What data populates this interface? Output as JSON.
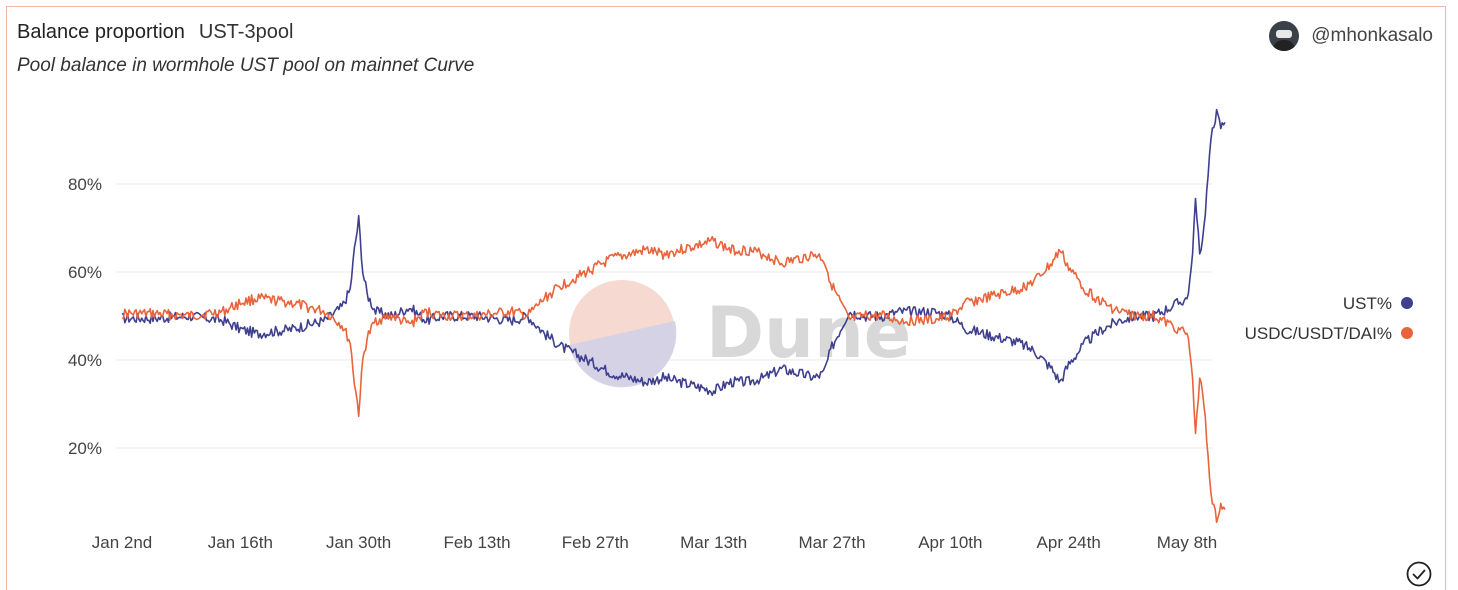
{
  "header": {
    "title": "Balance proportion",
    "query": "UST-3pool",
    "subtitle": "Pool balance in wormhole UST pool on mainnet Curve",
    "author": "@mhonkasalo"
  },
  "watermark": "Dune",
  "colors": {
    "ust": "#3f3f8f",
    "usdc": "#e8643a",
    "grid": "#e8e8e8"
  },
  "chart_data": {
    "type": "line",
    "title": "Balance proportion",
    "ylim": [
      0,
      100
    ],
    "yticks": [
      {
        "value": 20,
        "label": "20%"
      },
      {
        "value": 40,
        "label": "40%"
      },
      {
        "value": 60,
        "label": "60%"
      },
      {
        "value": 80,
        "label": "80%"
      }
    ],
    "xlim": [
      0,
      131
    ],
    "xticks": [
      {
        "value": 0,
        "label": "Jan 2nd"
      },
      {
        "value": 14,
        "label": "Jan 16th"
      },
      {
        "value": 28,
        "label": "Jan 30th"
      },
      {
        "value": 42,
        "label": "Feb 13th"
      },
      {
        "value": 56,
        "label": "Feb 27th"
      },
      {
        "value": 70,
        "label": "Mar 13th"
      },
      {
        "value": 84,
        "label": "Mar 27th"
      },
      {
        "value": 98,
        "label": "Apr 10th"
      },
      {
        "value": 112,
        "label": "Apr 24th"
      },
      {
        "value": 126,
        "label": "May 8th"
      }
    ],
    "grid": true,
    "legend_position": "right",
    "series": [
      {
        "name": "UST%",
        "color": "#3f3f8f",
        "x": [
          0,
          4,
          8,
          12,
          14,
          16,
          20,
          24,
          26,
          27,
          27.5,
          28,
          28.5,
          29,
          30,
          32,
          34,
          36,
          38,
          42,
          46,
          48,
          50,
          52,
          54,
          56,
          58,
          60,
          62,
          64,
          66,
          68,
          70,
          72,
          74,
          76,
          78,
          80,
          82,
          83,
          84,
          86,
          88,
          90,
          92,
          94,
          96,
          98,
          100,
          102,
          104,
          106,
          108,
          110,
          111,
          112,
          114,
          116,
          118,
          120,
          122,
          124,
          125,
          126,
          126.5,
          127,
          127.5,
          128,
          128.5,
          129,
          129.5,
          130,
          130.5
        ],
        "y": [
          49.5,
          49.5,
          50,
          49,
          47,
          46,
          47,
          49,
          52,
          56,
          65,
          72,
          60,
          55,
          51,
          50,
          52,
          49,
          50,
          50,
          49,
          50,
          46,
          43,
          41,
          39,
          37,
          36,
          35,
          36,
          35,
          34,
          33,
          35,
          35,
          36,
          38,
          37,
          36,
          37,
          43,
          51,
          50,
          50,
          51,
          51,
          51,
          50,
          47,
          46,
          45,
          44,
          42,
          38,
          35,
          39,
          44,
          47,
          49,
          50,
          50,
          52,
          53,
          54,
          60,
          76,
          64,
          70,
          82,
          93,
          96,
          93,
          94
        ]
      },
      {
        "name": "USDC/USDT/DAI%",
        "color": "#e8643a",
        "x": [
          0,
          4,
          8,
          12,
          14,
          16,
          20,
          24,
          26,
          27,
          27.5,
          28,
          28.5,
          29,
          30,
          32,
          34,
          36,
          38,
          42,
          46,
          48,
          50,
          52,
          54,
          56,
          58,
          60,
          62,
          64,
          66,
          68,
          70,
          72,
          74,
          76,
          78,
          80,
          82,
          83,
          84,
          86,
          88,
          90,
          92,
          94,
          96,
          98,
          100,
          102,
          104,
          106,
          108,
          110,
          111,
          112,
          114,
          116,
          118,
          120,
          122,
          124,
          125,
          126,
          126.5,
          127,
          127.5,
          128,
          128.5,
          129,
          129.5,
          130,
          130.5
        ],
        "y": [
          50.5,
          50.5,
          50,
          51,
          53,
          54,
          53,
          51,
          48,
          44,
          35,
          28,
          40,
          45,
          49,
          50,
          48,
          51,
          50,
          50,
          51,
          50,
          54,
          57,
          59,
          61,
          63,
          64,
          65,
          64,
          65,
          66,
          67,
          65,
          65,
          64,
          62,
          63,
          64,
          63,
          57,
          49,
          50,
          50,
          49,
          49,
          49,
          50,
          53,
          54,
          55,
          56,
          58,
          62,
          65,
          61,
          56,
          53,
          51,
          50,
          50,
          48,
          47,
          46,
          40,
          24,
          36,
          30,
          18,
          7,
          4,
          7,
          6
        ]
      }
    ]
  }
}
